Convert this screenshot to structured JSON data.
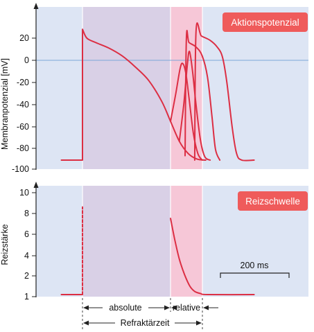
{
  "chart_data": [
    {
      "type": "line",
      "title": "Aktionspotenzial",
      "ylabel": "Membranpotenzial [mV]",
      "ylim": [
        -100,
        30
      ],
      "yticks": [
        "20",
        "0",
        "-20",
        "-40",
        "-60",
        "-80",
        "-100"
      ],
      "grid": false,
      "zero_line": true,
      "units": {
        "x": "ms",
        "y": "mV"
      },
      "phases": [
        {
          "name": "absolute",
          "x_range_ms": [
            0,
            200
          ],
          "color": "#d9d0e6"
        },
        {
          "name": "relative",
          "x_range_ms": [
            200,
            72
          ],
          "color": "#f6c7d7"
        }
      ],
      "series": [
        {
          "type": "primary",
          "points": [
            [
              -48,
              -90
            ],
            [
              0,
              -90
            ],
            [
              0,
              28
            ],
            [
              10,
              20
            ],
            [
              30,
              16
            ],
            [
              60,
              11
            ],
            [
              90,
              4
            ],
            [
              120,
              -6
            ],
            [
              150,
              -18
            ],
            [
              180,
              -37
            ],
            [
              200,
              -55
            ],
            [
              220,
              -73
            ],
            [
              240,
              -84
            ],
            [
              260,
              -89
            ],
            [
              280,
              -90
            ]
          ]
        },
        {
          "type": "response",
          "points": [
            [
              200,
              -55
            ],
            [
              212,
              -30
            ],
            [
              222,
              -7
            ],
            [
              228,
              -3
            ],
            [
              235,
              -12
            ],
            [
              242,
              -34
            ],
            [
              252,
              -66
            ],
            [
              262,
              -84
            ],
            [
              272,
              -90
            ]
          ]
        },
        {
          "type": "response",
          "points": [
            [
              220,
              -73
            ],
            [
              230,
              -40
            ],
            [
              238,
              -5
            ],
            [
              243,
              8
            ],
            [
              250,
              -10
            ],
            [
              258,
              -40
            ],
            [
              268,
              -72
            ],
            [
              278,
              -87
            ],
            [
              290,
              -90
            ]
          ]
        },
        {
          "type": "response",
          "points": [
            [
              233,
              -86
            ],
            [
              236,
              20
            ],
            [
              242,
              16
            ],
            [
              258,
              12
            ],
            [
              272,
              4
            ],
            [
              284,
              -15
            ],
            [
              294,
              -50
            ],
            [
              302,
              -80
            ],
            [
              312,
              -90
            ]
          ]
        },
        {
          "type": "response",
          "points": [
            [
              255,
              -90
            ],
            [
              258,
              26
            ],
            [
              270,
              22
            ],
            [
              290,
              18
            ],
            [
              306,
              12
            ],
            [
              318,
              3
            ],
            [
              328,
              -20
            ],
            [
              340,
              -60
            ],
            [
              350,
              -84
            ],
            [
              362,
              -90
            ],
            [
              390,
              -90
            ]
          ]
        }
      ]
    },
    {
      "type": "line",
      "title": "Reizschwelle",
      "ylabel": "Reizstärke",
      "ylim": [
        1,
        10
      ],
      "yticks": [
        "10",
        "8",
        "6",
        "4",
        "2",
        "1"
      ],
      "grid": false,
      "series": [
        {
          "type": "threshold",
          "points": [
            [
              -48,
              1.2
            ],
            [
              0,
              1.2
            ]
          ]
        },
        {
          "type": "infinite-threshold",
          "points": [
            [
              0,
              1.2
            ],
            [
              0,
              9.6
            ]
          ]
        },
        {
          "type": "threshold",
          "points": [
            [
              200,
              8.5
            ],
            [
              210,
              6.4
            ],
            [
              220,
              4.6
            ],
            [
              232,
              3.1
            ],
            [
              244,
              2.0
            ],
            [
              255,
              1.5
            ],
            [
              268,
              1.3
            ],
            [
              285,
              1.2
            ],
            [
              390,
              1.2
            ]
          ]
        }
      ],
      "annotations": [
        {
          "text": "200 ms",
          "x_range_ms": [
            316,
            516
          ]
        }
      ]
    }
  ],
  "labels": {
    "absolute": "absolute",
    "relative": "relative",
    "refraktar": "Refraktärzeit",
    "scalebar": "200 ms"
  },
  "colors": {
    "curve": "#dc2e43",
    "badge": "#ef5b5b",
    "absolute_bg": "#d9d0e6",
    "relative_bg": "#f6c7d7",
    "panel_bg": "#dde5f4",
    "zero_line": "#7aa6d8"
  }
}
